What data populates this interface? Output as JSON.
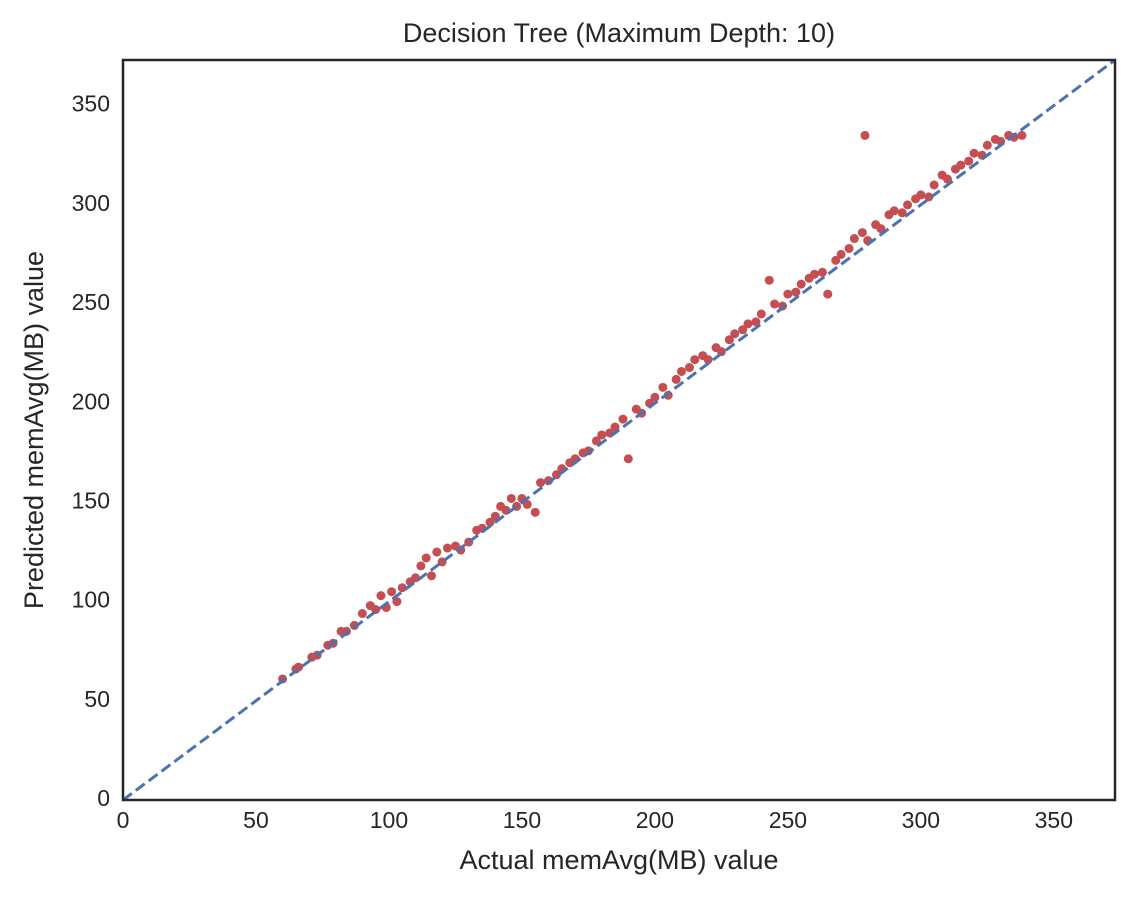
{
  "chart_data": {
    "type": "scatter",
    "title": "Decision Tree (Maximum Depth: 10)",
    "x_label": "Actual memAvg(MB) value",
    "y_label": "Predicted memAvg(MB) value",
    "color": "#c44e52",
    "x": [
      60,
      65,
      66,
      71,
      73,
      77,
      79,
      82,
      84,
      87,
      90,
      93,
      95,
      97,
      99,
      101,
      103,
      105,
      108,
      110,
      112,
      114,
      116,
      118,
      120,
      122,
      125,
      127,
      130,
      133,
      135,
      138,
      140,
      142,
      144,
      146,
      148,
      150,
      152,
      155,
      157,
      160,
      163,
      165,
      168,
      170,
      173,
      175,
      178,
      180,
      183,
      185,
      188,
      190,
      193,
      195,
      198,
      200,
      203,
      205,
      208,
      210,
      213,
      215,
      218,
      220,
      223,
      225,
      228,
      230,
      233,
      235,
      238,
      240,
      243,
      245,
      248,
      250,
      253,
      255,
      258,
      260,
      263,
      265,
      268,
      270,
      273,
      275,
      278,
      279,
      280,
      283,
      285,
      288,
      290,
      293,
      295,
      298,
      300,
      303,
      305,
      308,
      310,
      313,
      315,
      318,
      320,
      323,
      325,
      328,
      330,
      333,
      335,
      338
    ],
    "values": [
      61,
      66,
      67,
      72,
      73,
      78,
      79,
      85,
      85,
      88,
      94,
      98,
      96,
      103,
      97,
      105,
      100,
      107,
      110,
      112,
      118,
      122,
      113,
      125,
      120,
      127,
      128,
      126,
      130,
      136,
      137,
      140,
      143,
      148,
      146,
      152,
      148,
      152,
      149,
      145,
      160,
      161,
      164,
      167,
      170,
      172,
      175,
      176,
      181,
      184,
      185,
      188,
      192,
      172,
      197,
      195,
      200,
      203,
      208,
      204,
      212,
      216,
      218,
      222,
      224,
      222,
      228,
      226,
      232,
      235,
      237,
      240,
      241,
      245,
      262,
      250,
      249,
      255,
      256,
      260,
      263,
      265,
      266,
      255,
      272,
      275,
      278,
      283,
      286,
      335,
      282,
      290,
      288,
      295,
      297,
      296,
      300,
      303,
      305,
      304,
      310,
      315,
      313,
      318,
      320,
      322,
      326,
      325,
      330,
      333,
      332,
      335,
      334,
      335
    ],
    "reference_line": {
      "color": "#4c72b0",
      "style": "dashed"
    },
    "xlim": [
      0,
      373
    ],
    "ylim": [
      0,
      373
    ],
    "xticks": [
      0,
      50,
      100,
      150,
      200,
      250,
      300,
      350
    ],
    "yticks": [
      0,
      50,
      100,
      150,
      200,
      250,
      300,
      350
    ],
    "grid": false
  }
}
